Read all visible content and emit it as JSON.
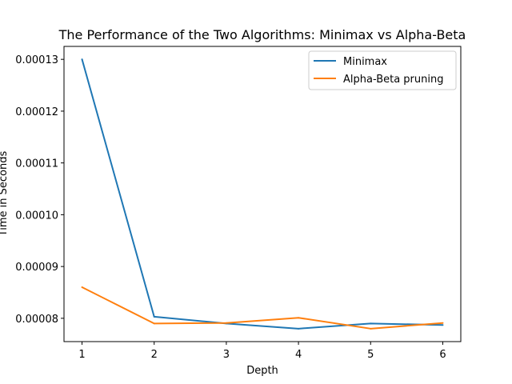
{
  "chart_data": {
    "type": "line",
    "title": "The Performance of the Two Algorithms: Minimax vs Alpha-Beta",
    "xlabel": "Depth",
    "ylabel": "Time in Seconds",
    "x": [
      1,
      2,
      3,
      4,
      5,
      6
    ],
    "xticks": [
      "1",
      "2",
      "3",
      "4",
      "5",
      "6"
    ],
    "yticks": [
      8e-05,
      9e-05,
      0.0001,
      0.00011,
      0.00012,
      0.00013
    ],
    "ytick_labels": [
      "0.00008",
      "0.00009",
      "0.00010",
      "0.00011",
      "0.00012",
      "0.00013"
    ],
    "xlim": [
      0.75,
      6.25
    ],
    "ylim": [
      7.55e-05,
      0.0001325
    ],
    "grid": false,
    "legend_position": "top-right",
    "series": [
      {
        "name": "Minimax",
        "color": "#1f77b4",
        "values": [
          0.00013,
          8.03e-05,
          7.9e-05,
          7.8e-05,
          7.9e-05,
          7.87e-05
        ]
      },
      {
        "name": "Alpha-Beta pruning",
        "color": "#ff7f0e",
        "values": [
          8.6e-05,
          7.9e-05,
          7.91e-05,
          8.01e-05,
          7.8e-05,
          7.91e-05
        ]
      }
    ]
  }
}
